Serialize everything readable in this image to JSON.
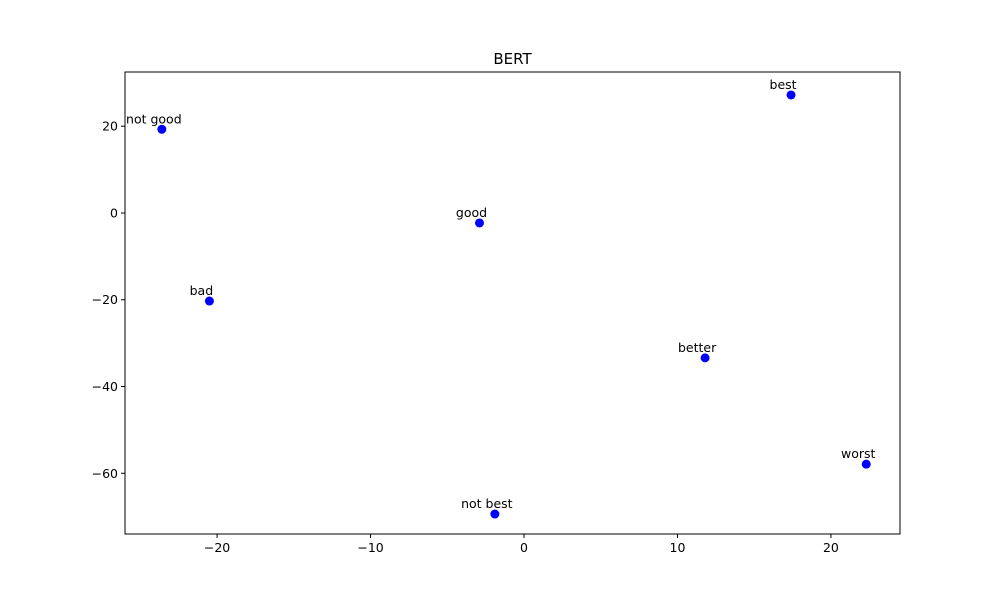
{
  "chart_data": {
    "type": "scatter",
    "title": "BERT",
    "xlabel": "",
    "ylabel": "",
    "xlim": [
      -26,
      24.5
    ],
    "ylim": [
      -74,
      32.5
    ],
    "xticks": [
      -20,
      -10,
      0,
      10,
      20
    ],
    "yticks": [
      -60,
      -40,
      -20,
      0,
      20
    ],
    "grid": false,
    "marker_color": "#0000ff",
    "points": [
      {
        "label": "not good",
        "x": -23.6,
        "y": 19.3
      },
      {
        "label": "good",
        "x": -2.9,
        "y": -2.3
      },
      {
        "label": "bad",
        "x": -20.5,
        "y": -20.3
      },
      {
        "label": "best",
        "x": 17.4,
        "y": 27.2
      },
      {
        "label": "better",
        "x": 11.8,
        "y": -33.4
      },
      {
        "label": "worst",
        "x": 22.3,
        "y": -57.9
      },
      {
        "label": "not best",
        "x": -1.9,
        "y": -69.4
      }
    ]
  }
}
